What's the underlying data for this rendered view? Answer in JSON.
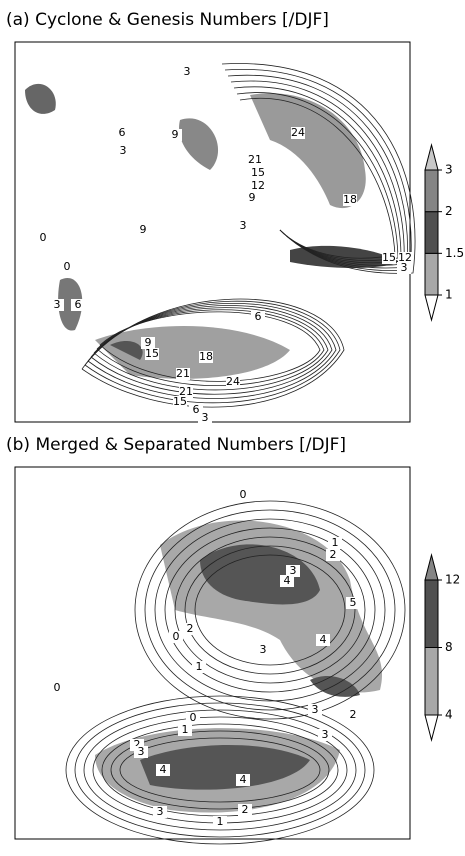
{
  "chart_data": [
    {
      "type": "contour-map",
      "title": "(a) Cyclone & Genesis Numbers [/DJF]",
      "colorbar_ticks": [
        1,
        1.5,
        2,
        3
      ],
      "colorbar_colors": [
        "#ffffff",
        "#a8a8a8",
        "#505050",
        "#858585",
        "#c8c8c8"
      ],
      "contour_labels": [
        3,
        6,
        9,
        24,
        21,
        15,
        12,
        9,
        3,
        18,
        15,
        12,
        3,
        9,
        3,
        0,
        0,
        3,
        6,
        6,
        9,
        15,
        18,
        21,
        24,
        21,
        15,
        6,
        3
      ]
    },
    {
      "type": "contour-map",
      "title": "(b) Merged & Separated Numbers [/DJF]",
      "colorbar_ticks": [
        4,
        8,
        12
      ],
      "colorbar_colors": [
        "#ffffff",
        "#a8a8a8",
        "#505050",
        "#858585"
      ],
      "contour_labels": [
        0,
        1,
        2,
        3,
        4,
        5,
        2,
        4,
        0,
        1,
        3,
        3,
        2,
        0,
        0,
        1,
        2,
        3,
        4,
        4,
        3,
        3,
        2,
        1
      ]
    }
  ]
}
